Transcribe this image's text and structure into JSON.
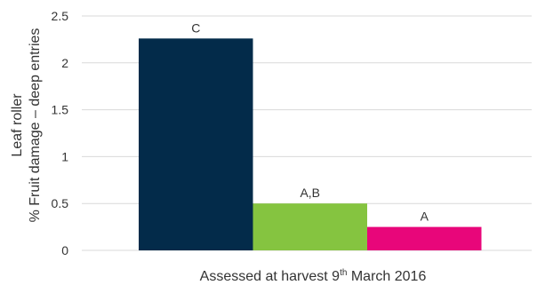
{
  "chart_data": {
    "type": "bar",
    "categories": [
      "",
      "",
      ""
    ],
    "values": [
      2.26,
      0.5,
      0.25
    ],
    "data_labels": [
      "C",
      "A,B",
      "A"
    ],
    "colors": [
      "#032b4a",
      "#85c440",
      "#e8067a"
    ],
    "ylabel_line1": "Leaf roller",
    "ylabel_line2": "% Fruit damage – deep entries",
    "xlabel_pre": "Assessed at harvest 9",
    "xlabel_sup": "th",
    "xlabel_post": " March 2016",
    "ylim": [
      0,
      2.5
    ],
    "yticks": [
      "0",
      "0.5",
      "1",
      "1.5",
      "2",
      "2.5"
    ],
    "grid": true,
    "legend": "none"
  }
}
